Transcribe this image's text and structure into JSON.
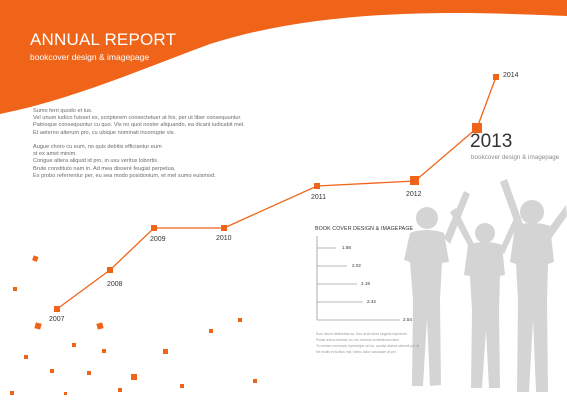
{
  "header": {
    "title": "ANNUAL REPORT",
    "subtitle": "bookcover design & imagepage"
  },
  "body_text": {
    "paragraph1": [
      "Sumo ferri quodo et ius.",
      "Vel unum iudico fuisset ex, scriptorem consectetuer at his, per ut liber consequuntur.",
      "Patrioque consequuntur cu quo. Vis no quot noster aliquando, ea dicant iudicabit mel.",
      "Et aeterno alterum pro, cu ubique nominati incorrupte vis."
    ],
    "paragraph2": [
      "Augue choro cu eum, no quis debitis efficiantur eum",
      "st ex amet minim.",
      "Congue altera aliquid id pro, in usu veritus lobortis.",
      "Brute constituto nam in. Ad mea disseré feugiat perpetua.",
      "Ex probo referrentur per, eu sea modo posidonium, et mel sumo euismod."
    ]
  },
  "timeline": {
    "years": [
      "2007",
      "2008",
      "2009",
      "2010",
      "2011",
      "2012",
      "2014"
    ],
    "highlight_year": "2013",
    "highlight_subtitle": "bookcover design & imagepage"
  },
  "mini_chart": {
    "title": "BOOK COVER DESIGN & IMAGEPAGE",
    "values": [
      "1.88",
      "2.02",
      "2.19",
      "2.42",
      "2.54"
    ]
  },
  "footnote": [
    "Eum dicunt definiebas ea. Duo  at sit simul singulis rupedenti",
    "Possit adhuc tractare no,  his nominis contentiones dero",
    "Te veniam commodo reprimique vel eu, quodsi utamur deleniti per at",
    "Ne mollis et lucilius mel,  inimic dolor suscipiam at per"
  ],
  "colors": {
    "accent": "#F06419",
    "silhouette": "#D4D4D4"
  }
}
